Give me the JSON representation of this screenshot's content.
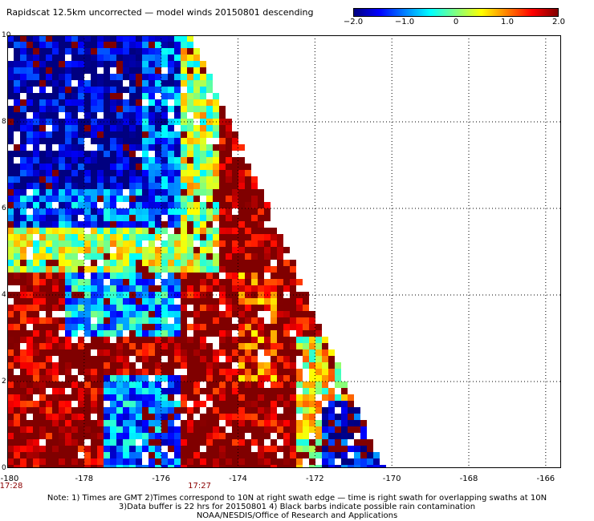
{
  "title": "Rapidscat 12.5km uncorrected — model winds 20150801 descending",
  "colorbar": {
    "ticks": [
      {
        "value": -2.0,
        "label": "−2.0"
      },
      {
        "value": -1.0,
        "label": "−1.0"
      },
      {
        "value": 0,
        "label": "0"
      },
      {
        "value": 1.0,
        "label": "1.0"
      },
      {
        "value": 2.0,
        "label": "2.0"
      }
    ],
    "range": [
      -2.0,
      2.0
    ],
    "colors": [
      "#000080",
      "#0000ff",
      "#0080ff",
      "#00ffff",
      "#80ff80",
      "#ffff00",
      "#ff8000",
      "#ff0000",
      "#800000"
    ]
  },
  "map": {
    "lon_range": [
      -180,
      -165.6
    ],
    "lat_range": [
      0,
      10
    ],
    "x_ticks": [
      -180,
      -178,
      -176,
      -174,
      -172,
      -170,
      -168,
      -166
    ],
    "x_labels": [
      "-180",
      "-178",
      "-176",
      "-174",
      "-172",
      "-170",
      "-168",
      "-166"
    ],
    "y_ticks": [
      0,
      2,
      4,
      6,
      8,
      10
    ],
    "y_labels": [
      "0",
      "2",
      "4",
      "6",
      "8",
      "10"
    ],
    "grid": "dotted",
    "swath_edge": {
      "lon_at_10N": -175.2,
      "lon_at_0N": -170.2
    },
    "missing_color": "#ffffff",
    "pass_times": [
      {
        "lon": -180,
        "label": "17:28"
      },
      {
        "lon": -175.0,
        "label": "17:27"
      }
    ]
  },
  "notes": [
    "Note: 1) Times are GMT 2)Times correspond to 10N at right swath edge — time is right swath for overlapping swaths at 10N",
    "3)Data buffer is 22 hrs for 20150801 4) Black barbs indicate possible rain contamination",
    "NOAA/NESDIS/Office of Research and Applications"
  ]
}
